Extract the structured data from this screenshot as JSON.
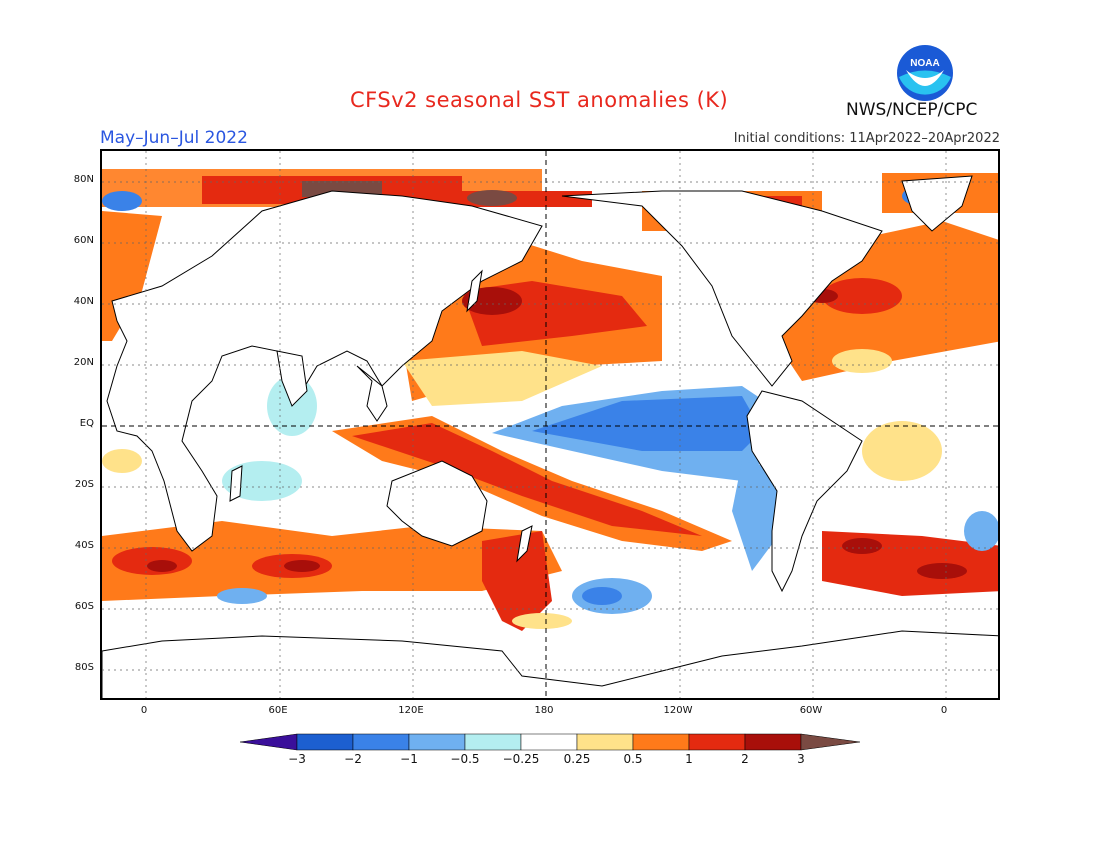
{
  "header": {
    "title": "CFSv2 seasonal SST anomalies (K)",
    "period": "May–Jun–Jul 2022",
    "initial_conditions": "Initial conditions: 11Apr2022–20Apr2022",
    "agency": "NWS/NCEP/CPC",
    "logo_text": "NOAA"
  },
  "map": {
    "lat_labels": [
      "80N",
      "60N",
      "40N",
      "20N",
      "EQ",
      "20S",
      "40S",
      "60S",
      "80S"
    ],
    "lon_labels": [
      "0",
      "60E",
      "120E",
      "180",
      "120W",
      "60W",
      "0"
    ]
  },
  "colorbar": {
    "labels": [
      "−3",
      "−2",
      "−1",
      "−0.5",
      "−0.25",
      "0.25",
      "0.5",
      "1",
      "2",
      "3"
    ],
    "colors": [
      "#3a0f9a",
      "#1c5fd0",
      "#3a82e8",
      "#6fb0f0",
      "#b4eef0",
      "#ffffff",
      "#ffe28a",
      "#ff7a1a",
      "#e42a10",
      "#a80f0a",
      "#7a4a42"
    ]
  }
}
